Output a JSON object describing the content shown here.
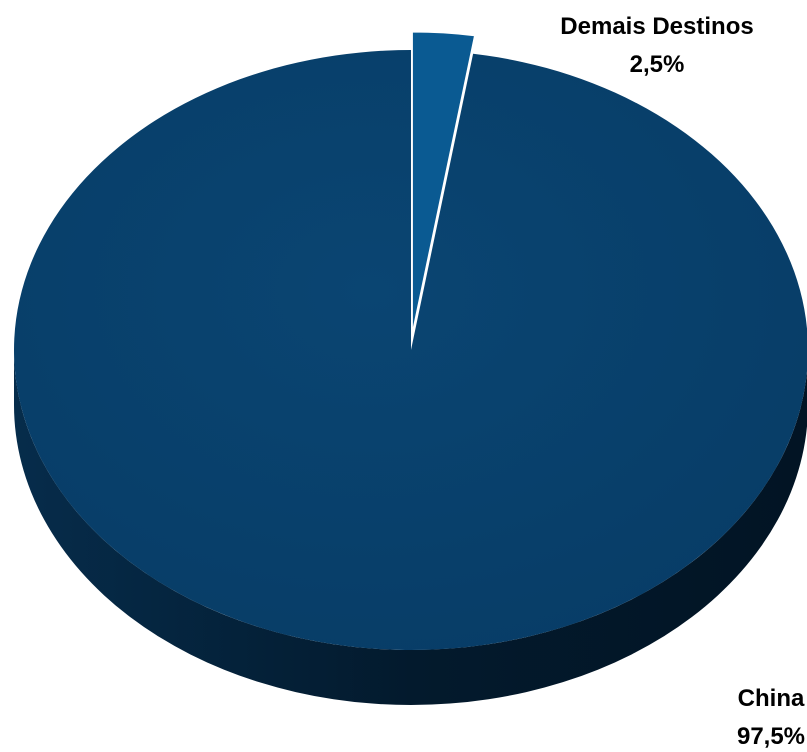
{
  "chart_data": {
    "type": "pie",
    "style": "3d",
    "title": "",
    "slices": [
      {
        "label": "China",
        "value": 97.5,
        "value_label": "97,5%",
        "color": "#073f6b"
      },
      {
        "label": "Demais Destinos",
        "value": 2.5,
        "value_label": "2,5%",
        "color": "#0a5a92",
        "exploded": true
      }
    ],
    "legend": "none"
  }
}
